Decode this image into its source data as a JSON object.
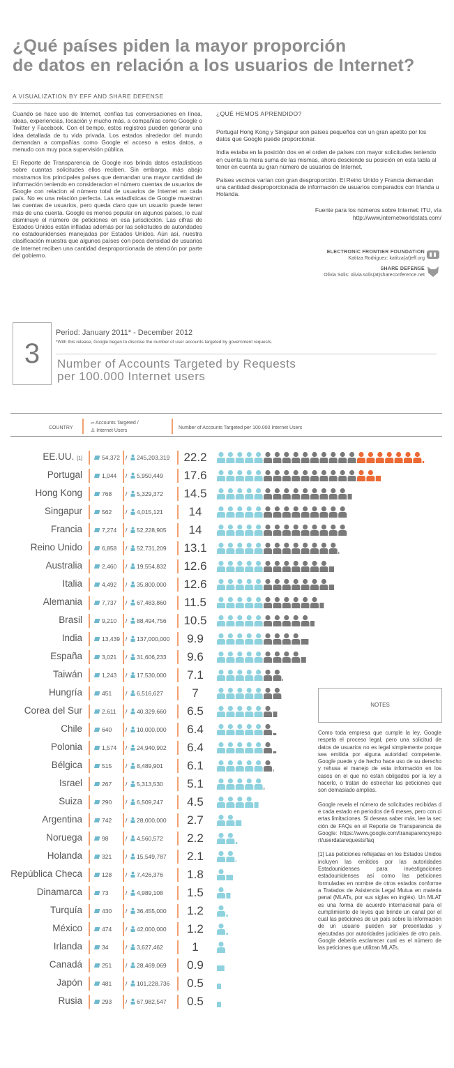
{
  "header": {
    "title_lines": [
      "¿Qué países piden la mayor proporción",
      "de datos en relación a los usuarios de Internet?"
    ],
    "byline": "A VISUALIZATION BY EFF AND SHARE DEFENSE"
  },
  "intro": {
    "paragraphs": [
      "Cuando se hace uso de Internet, confías tus conversaciones en línea, ideas, experiencias, locación y mucho más, a compañías como Google o Twitter y Facebook. Con el tiempo, estos registros pueden generar una idea detallada de tu vida privada. Los estados alrededor del mundo demandan a compañías como Google el acceso a estos datos, a menudo con muy poca supervisión pública.",
      "El Reporte de Transparencia de Google nos brinda datos estadísticos sobre cuantas solicitudes ellos reciben. Sin embargo, más abajo mostramos los principales países que demandan una mayor cantidad de información teniendo en consideracion el número cuentas de usuarios de Google con relacion al número total de usuarios de Internet en cada país. No es una relación perfecta. Las estadísticas de Google muestran las cuentas de usuarios, pero queda claro que un usuario puede tener más de una cuenta. Google es menos popular en algunos países, lo cual disminuye el número de peticiones en esa jurisdicción. Las cifras de Estados Unidos están infladas además por las solicitudes de autoridades no estadounidenses manejadas por Estados Unidos. Aún así, nuestra clasificación muestra que algunos países con poca densidad de usuarios de Internet reciben una cantidad desproporcionada de atención por parte del gobierno."
    ]
  },
  "learned": {
    "heading": "¿QUÉ HEMOS APRENDIDO?",
    "paragraphs": [
      "Portugal Hong Kong y Singapur son países pequeños con un gran apetito por los datos que Google puede proporcionar.",
      "India estaba en la posición dos en el orden de países con mayor solicitudes teniendo en cuenta la mera suma de las mismas, ahora desciende su posición en esta tabla al tener en cuenta su gran número de usuarios de Internet.",
      "Países vecinos varían con gran desproporción. El Reino Unido y Francia demandan una cantidad desproporcionada de información de usuarios comparados con Irlanda u Holanda."
    ],
    "source": [
      "Fuente para los números sobre Internet: ITU, vía",
      "http://www.internetworldstats.com/"
    ]
  },
  "credits": [
    {
      "org": "ELECTRONIC FRONTIER FOUNDATION",
      "person": "Katitza Rodriguez: katitza(at)eff.org"
    },
    {
      "org": "SHARE DEFENSE",
      "person": "Olivia Solis: olivia.solis(at)shareconference.net"
    }
  ],
  "section": {
    "number": 3,
    "period": "Period: January 2011* - December 2012",
    "footnote": "*With this release, Google began to disclose the number of user accounts targeted by government requests.",
    "title_lines": [
      "Number of Accounts Targeted by Requests",
      "per 100.000 Internet users"
    ]
  },
  "table": {
    "columns": {
      "country": "COUNTRY",
      "accounts": "Accounts Targeted  /",
      "users": "Internet Users",
      "ratio": "Number of Accounts Targeted per 100.000 Internet Users"
    },
    "separator": "/",
    "colors": [
      "#8fd2df",
      "#7a7a7a",
      "#ec6a35"
    ],
    "rows": [
      {
        "country": "EE.UU.",
        "footnote": "[1]",
        "accounts": "54,372",
        "users": "245,203,319",
        "ratio": 22.2
      },
      {
        "country": "Portugal",
        "accounts": "1,044",
        "users": "5,950,449",
        "ratio": 17.6
      },
      {
        "country": "Hong Kong",
        "accounts": "768",
        "users": "5,329,372",
        "ratio": 14.5
      },
      {
        "country": "Singapur",
        "accounts": "562",
        "users": "4,015,121",
        "ratio": 14
      },
      {
        "country": "Francia",
        "accounts": "7,274",
        "users": "52,228,905",
        "ratio": 14
      },
      {
        "country": "Reino Unido",
        "accounts": "6,858",
        "users": "52,731,209",
        "ratio": 13.1
      },
      {
        "country": "Australia",
        "accounts": "2,460",
        "users": "19,554,832",
        "ratio": 12.6
      },
      {
        "country": "Italia",
        "accounts": "4,492",
        "users": "35,800,000",
        "ratio": 12.6
      },
      {
        "country": "Alemania",
        "accounts": "7,737",
        "users": "67,483,860",
        "ratio": 11.5
      },
      {
        "country": "Brasil",
        "accounts": "9,210",
        "users": "88,494,756",
        "ratio": 10.5
      },
      {
        "country": "India",
        "accounts": "13,439",
        "users": "137,000,000",
        "ratio": 9.9
      },
      {
        "country": "España",
        "accounts": "3,021",
        "users": "31,606,233",
        "ratio": 9.6
      },
      {
        "country": "Taiwán",
        "accounts": "1,243",
        "users": "17,530,000",
        "ratio": 7.1
      },
      {
        "country": "Hungría",
        "accounts": "451",
        "users": "6,516,627",
        "ratio": 7
      },
      {
        "country": "Corea del Sur",
        "accounts": "2,611",
        "users": "40,329,660",
        "ratio": 6.5
      },
      {
        "country": "Chile",
        "accounts": "640",
        "users": "10,000,000",
        "ratio": 6.4
      },
      {
        "country": "Polonia",
        "accounts": "1,574",
        "users": "24,940,902",
        "ratio": 6.4
      },
      {
        "country": "Bélgica",
        "accounts": "515",
        "users": "8,489,901",
        "ratio": 6.1
      },
      {
        "country": "Israel",
        "accounts": "267",
        "users": "5,313,530",
        "ratio": 5.1
      },
      {
        "country": "Suiza",
        "accounts": "290",
        "users": "6,509,247",
        "ratio": 4.5
      },
      {
        "country": "Argentina",
        "accounts": "742",
        "users": "28,000,000",
        "ratio": 2.7
      },
      {
        "country": "Noruega",
        "accounts": "98",
        "users": "4,560,572",
        "ratio": 2.2
      },
      {
        "country": "Holanda",
        "accounts": "321",
        "users": "15,549,787",
        "ratio": 2.1
      },
      {
        "country": "República Checa",
        "accounts": "128",
        "users": "7,426,376",
        "ratio": 1.8
      },
      {
        "country": "Dinamarca",
        "accounts": "73",
        "users": "4,989,108",
        "ratio": 1.5
      },
      {
        "country": "Turquía",
        "accounts": "430",
        "users": "36,455,000",
        "ratio": 1.2
      },
      {
        "country": "México",
        "accounts": "474",
        "users": "42,000,000",
        "ratio": 1.2
      },
      {
        "country": "Irlanda",
        "accounts": "34",
        "users": "3,627,462",
        "ratio": 1
      },
      {
        "country": "Canadá",
        "accounts": "251",
        "users": "28,469,069",
        "ratio": 0.9
      },
      {
        "country": "Japón",
        "accounts": "481",
        "users": "101,228,736",
        "ratio": 0.5
      },
      {
        "country": "Rusia",
        "accounts": "293",
        "users": "67,982,547",
        "ratio": 0.5
      }
    ]
  },
  "notes": {
    "heading": "NOTES",
    "paragraphs": [
      "Como toda empresa que cumple la ley, Google respeta el proceso legal, pero una solicitud de datos de usuarios no es legal simplemente porque sea emitida por alguna autoridad competente. Google puede y de hecho hace uso de su derecho y rehusa el manejo de esta información en los casos en el que no están obligados por la ley a hacerlo, o tratan de estrechar las peticiones que son demasiado amplias.",
      "Google revela el número de solicitudes recibidas de cada estado en periodos de 6 meses, pero con ciertas limitaciones. Si deseas saber más, lee la sección de FAQs en el Reporte de Transparencia de Google: https://www.google.com/transparencyreport/userdatarequests/faq",
      "[1]   Las peticiones reflejadas en los Estados Unidos incluyen las emitidos por las autoridades Estadounidenses para investigaciones estadounidenses así como las peticiones formuladas en nombre de otros estados conforme a Tratados de Asistencia Legal Mutua en materia penal (MLATs, por sus siglas en inglés). Un MLAT es una forma de acuerdo internacional para el cumplimiento de leyes que brinde un canal por el cual las peticiones de un país sobre la información de un usuario pueden ser presentadas y ejecutadas por autoridades judiciales de otro país. Google debería esclarecer cual es el número de las peticiones que utilizan MLATs."
    ]
  }
}
